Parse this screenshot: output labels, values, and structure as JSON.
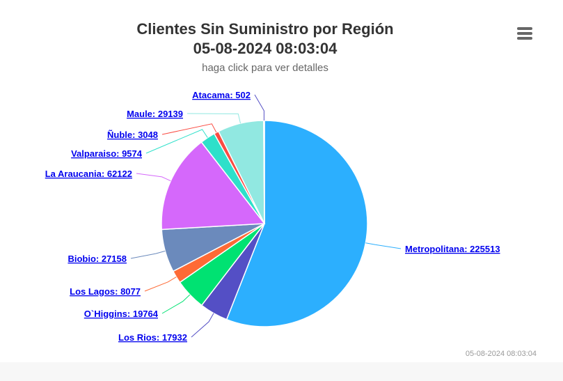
{
  "header": {
    "title_line1": "Clientes Sin Suministro por Región",
    "title_line2": "05-08-2024 08:03:04",
    "subtitle": "haga click para ver detalles"
  },
  "menu": {
    "icon": "hamburger-menu-icon"
  },
  "footer": {
    "timestamp": "05-08-2024 08:03:04"
  },
  "chart_data": {
    "type": "pie",
    "title": "Clientes Sin Suministro por Región 05-08-2024 08:03:04",
    "subtitle": "haga click para ver detalles",
    "slices": [
      {
        "name": "Metropolitana",
        "value": 225513,
        "color": "#2caffe",
        "label": "Metropolitana: 225513"
      },
      {
        "name": "Los Rios",
        "value": 17932,
        "color": "#544fc5",
        "label": "Los Rios: 17932"
      },
      {
        "name": "O`Higgins",
        "value": 19764,
        "color": "#00e272",
        "label": "O`Higgins: 19764"
      },
      {
        "name": "Los Lagos",
        "value": 8077,
        "color": "#fe6a35",
        "label": "Los Lagos: 8077"
      },
      {
        "name": "Biobio",
        "value": 27158,
        "color": "#6b8abc",
        "label": "Biobio: 27158"
      },
      {
        "name": "La Araucania",
        "value": 62122,
        "color": "#d568fb",
        "label": "La Araucania: 62122"
      },
      {
        "name": "Valparaiso",
        "value": 9574,
        "color": "#2ee0ca",
        "label": "Valparaiso: 9574"
      },
      {
        "name": "Ñuble",
        "value": 3048,
        "color": "#fa4b42",
        "label": "Ñuble: 3048"
      },
      {
        "name": "Maule",
        "value": 29139,
        "color": "#91e8e1",
        "label": "Maule: 29139"
      },
      {
        "name": "Atacama",
        "value": 502,
        "color": "#544fc5",
        "label": "Atacama: 502"
      }
    ]
  }
}
